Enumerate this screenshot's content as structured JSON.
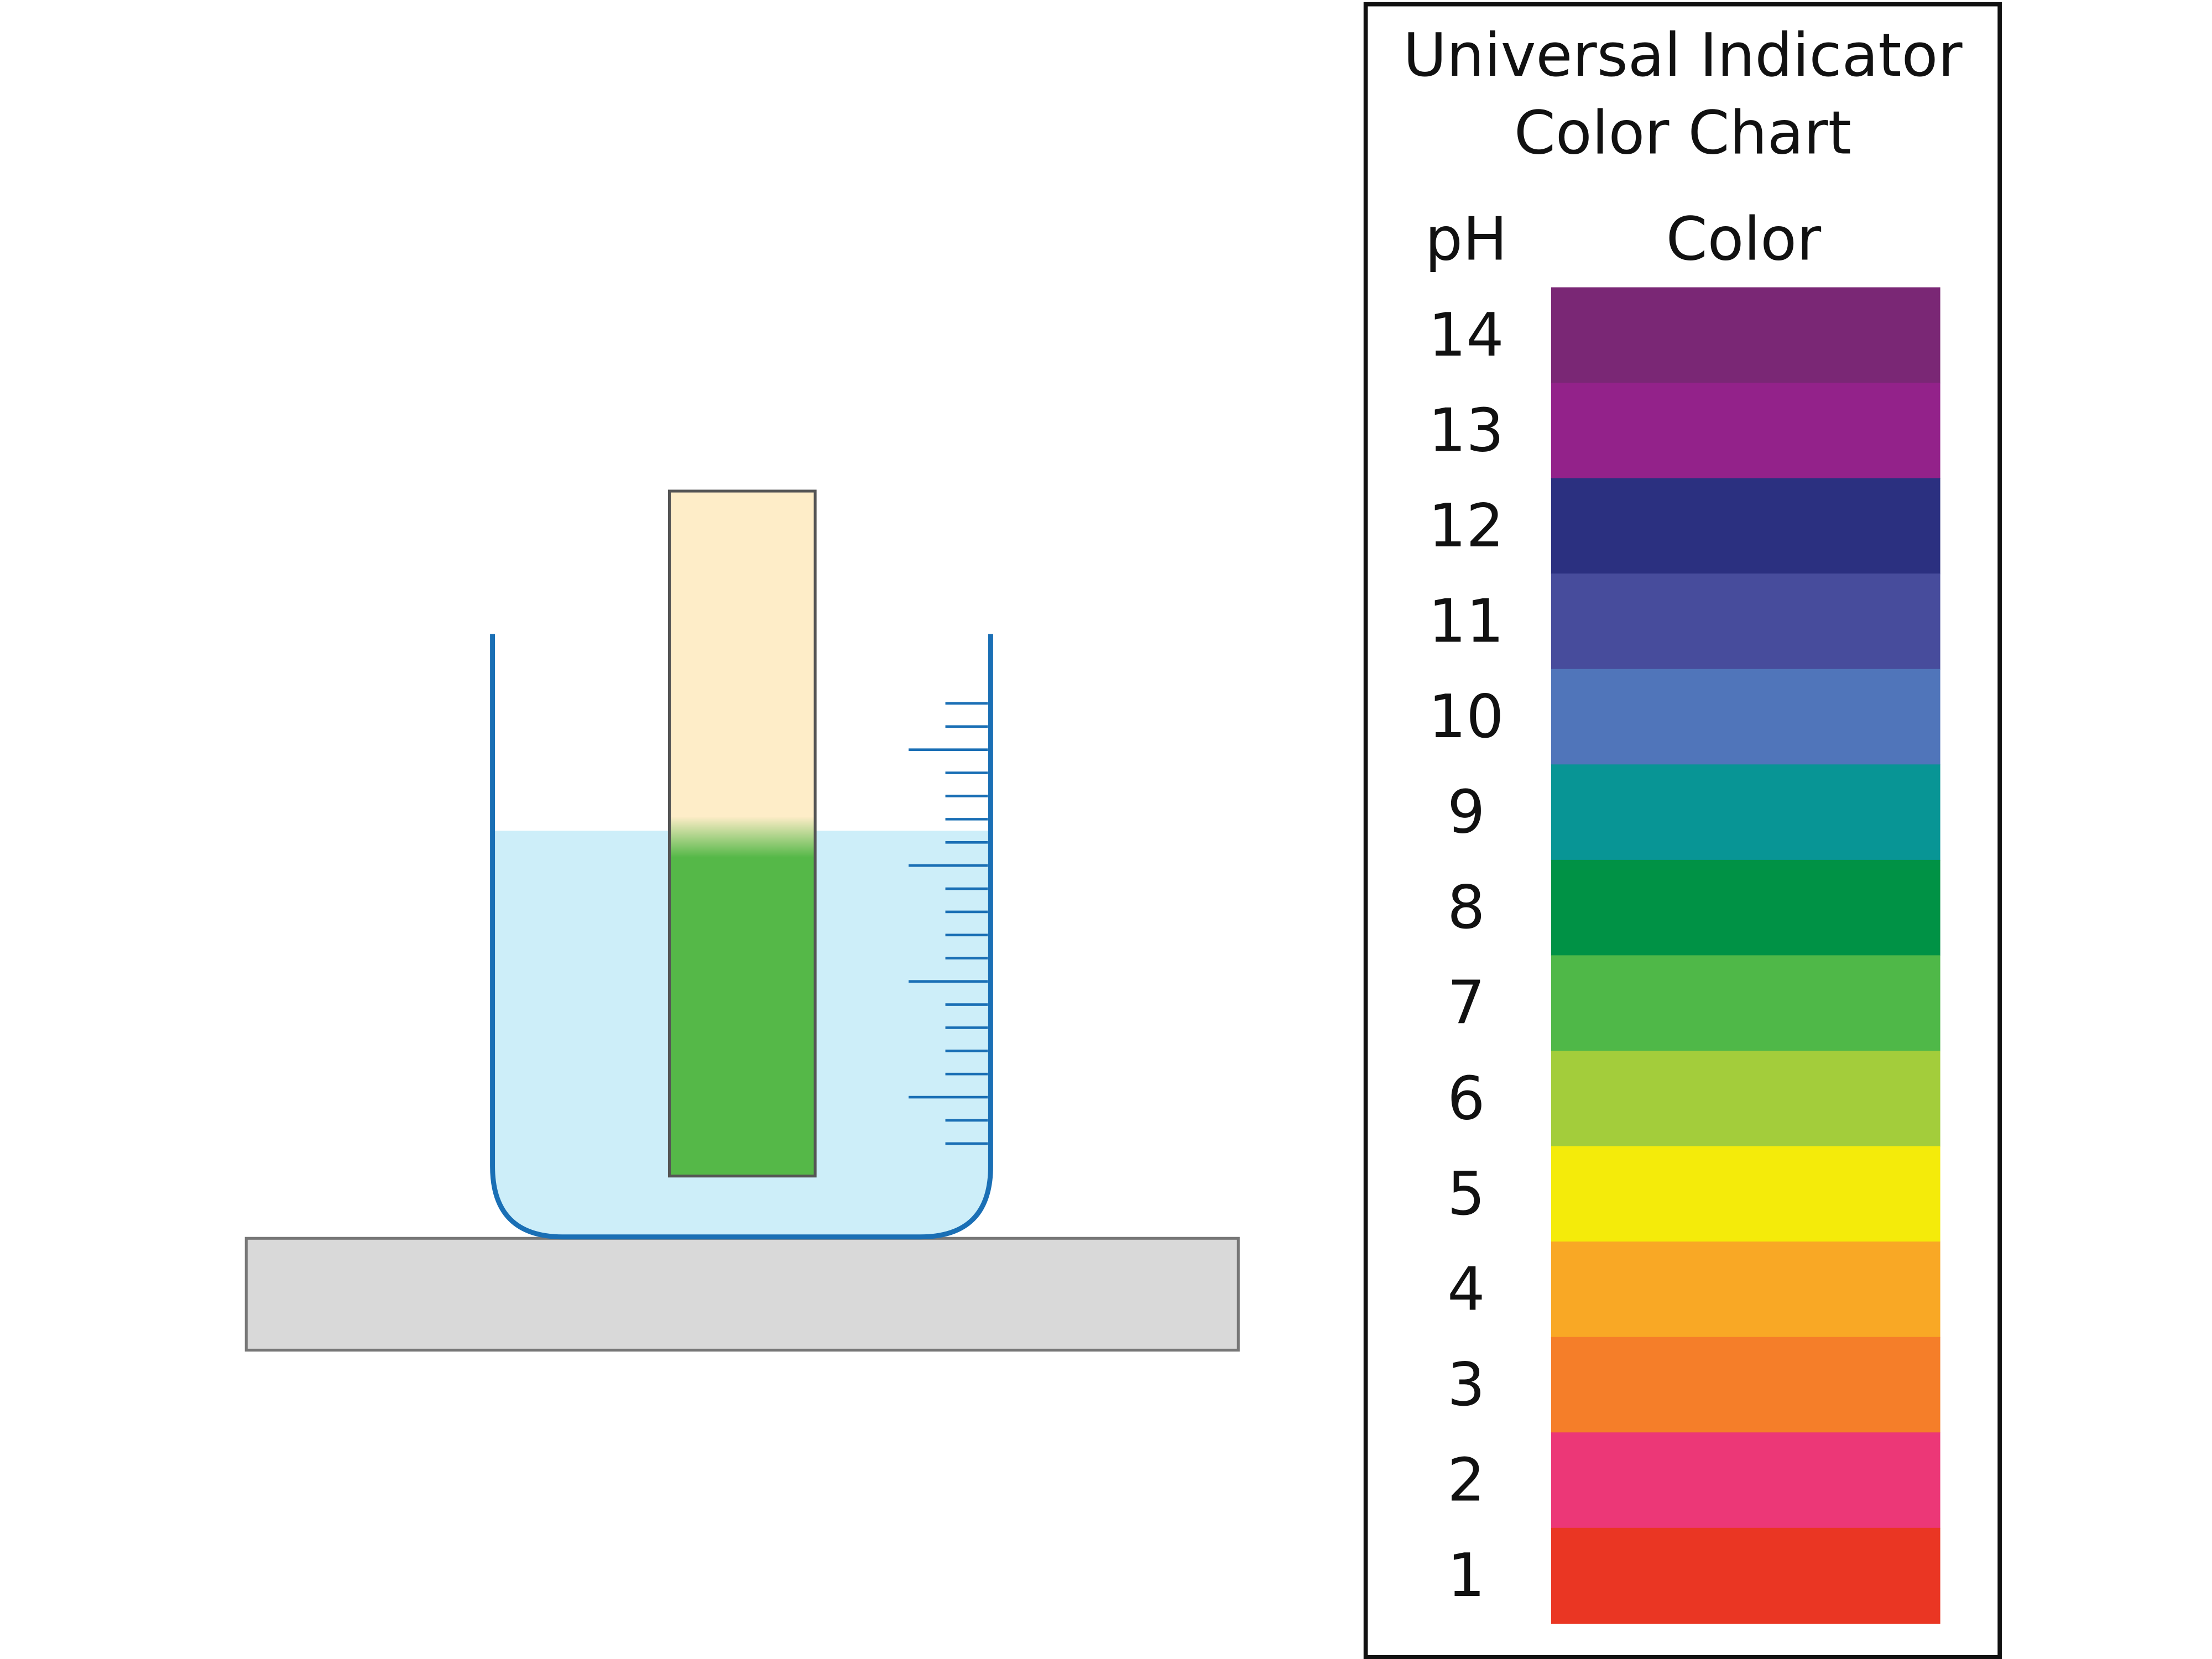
{
  "header": {
    "title_lines": [
      "Universal Indicator",
      "Color Chart"
    ]
  },
  "table": {
    "columns": [
      "pH",
      "Color"
    ],
    "rows": [
      {
        "ph": 14,
        "color": "#7a2775"
      },
      {
        "ph": 13,
        "color": "#93228a"
      },
      {
        "ph": 12,
        "color": "#2b3080"
      },
      {
        "ph": 11,
        "color": "#474c9c"
      },
      {
        "ph": 10,
        "color": "#5075ba"
      },
      {
        "ph": 9,
        "color": "#089595"
      },
      {
        "ph": 8,
        "color": "#009245"
      },
      {
        "ph": 7,
        "color": "#4fb848"
      },
      {
        "ph": 6,
        "color": "#a3cd3b"
      },
      {
        "ph": 5,
        "color": "#f4eb0a"
      },
      {
        "ph": 4,
        "color": "#f9a825"
      },
      {
        "ph": 3,
        "color": "#f57e29"
      },
      {
        "ph": 2,
        "color": "#ec3777"
      },
      {
        "ph": 1,
        "color": "#ea3623"
      }
    ]
  }
}
